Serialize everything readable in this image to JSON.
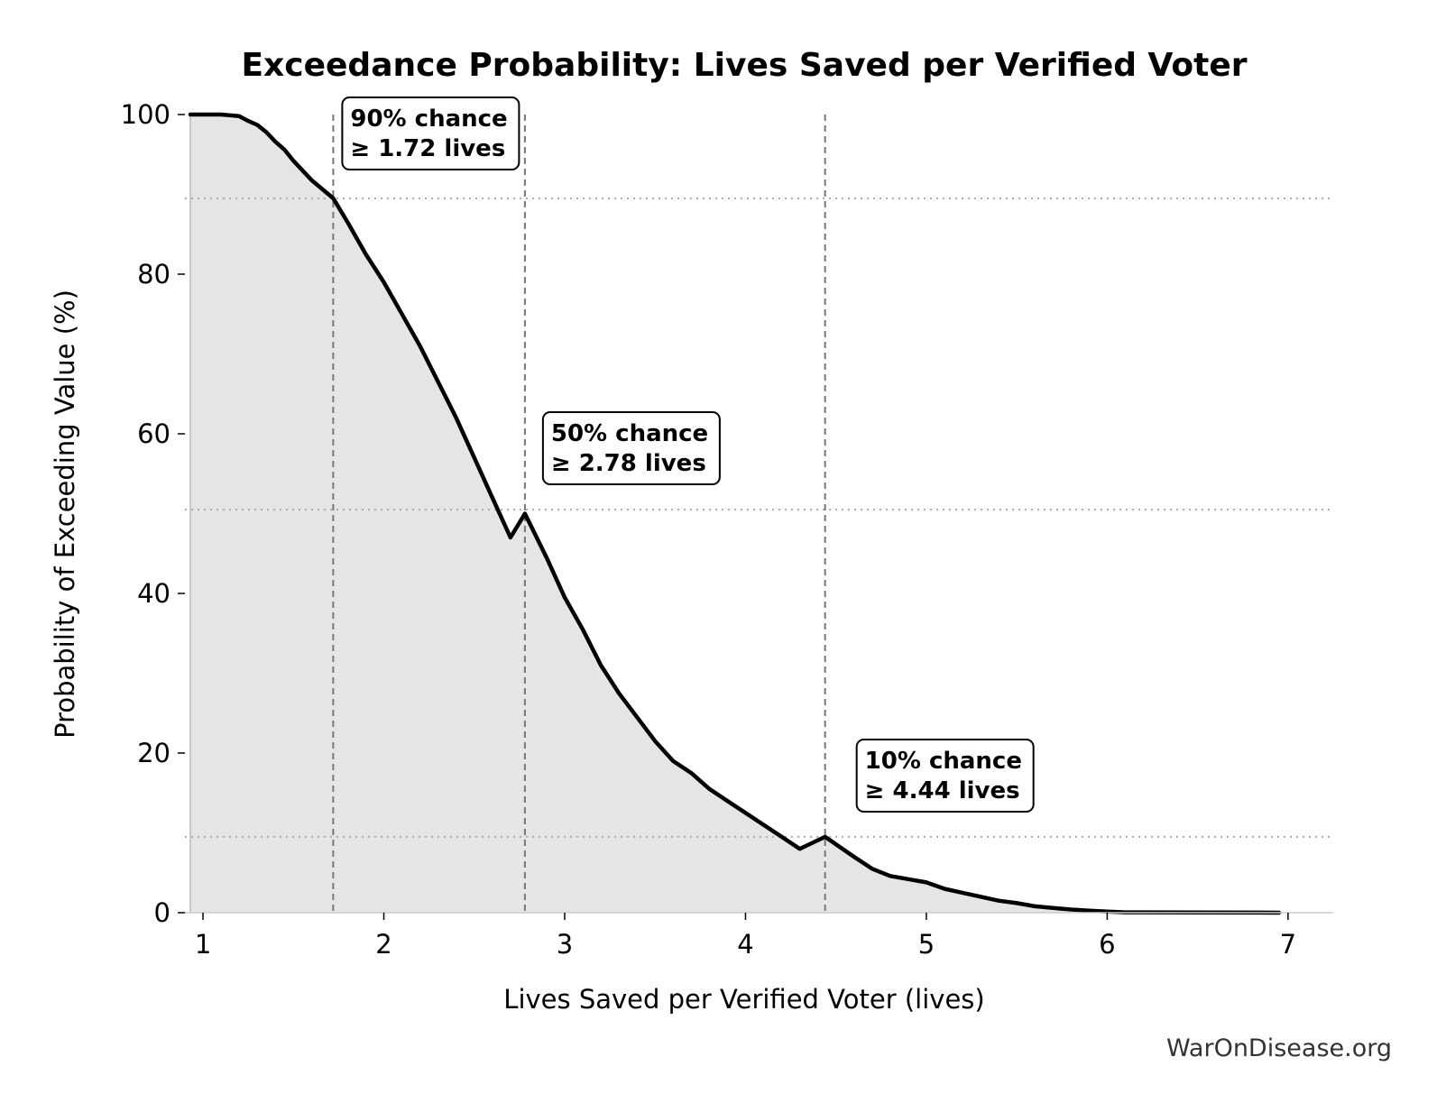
{
  "chart_data": {
    "type": "area",
    "title": "Exceedance Probability: Lives Saved per Verified Voter",
    "xlabel": "Lives Saved per Verified Voter (lives)",
    "ylabel": "Probability of Exceeding Value (%)",
    "xlim": [
      0.9,
      7.25
    ],
    "ylim": [
      0,
      100
    ],
    "x_ticks": [
      "1",
      "2",
      "3",
      "4",
      "5",
      "6",
      "7"
    ],
    "y_ticks": [
      "0",
      "20",
      "40",
      "60",
      "80",
      "100"
    ],
    "grid": false,
    "x": [
      0.93,
      1.0,
      1.1,
      1.2,
      1.25,
      1.3,
      1.35,
      1.4,
      1.45,
      1.5,
      1.6,
      1.72,
      1.8,
      1.9,
      2.0,
      2.1,
      2.2,
      2.3,
      2.4,
      2.5,
      2.6,
      2.7,
      2.78,
      2.9,
      3.0,
      3.1,
      3.2,
      3.3,
      3.4,
      3.5,
      3.6,
      3.7,
      3.8,
      3.9,
      4.0,
      4.1,
      4.2,
      4.3,
      4.44,
      4.6,
      4.7,
      4.8,
      4.9,
      5.0,
      5.1,
      5.2,
      5.3,
      5.4,
      5.5,
      5.6,
      5.7,
      5.8,
      5.9,
      6.0,
      6.1,
      6.2,
      6.5,
      6.95
    ],
    "y": [
      100,
      100,
      100,
      99.8,
      99.2,
      98.7,
      97.8,
      96.6,
      95.6,
      94.2,
      91.8,
      89.5,
      86.5,
      82.5,
      79.0,
      75.0,
      71.0,
      66.5,
      62.0,
      57.0,
      52.0,
      47.0,
      50.0,
      44.5,
      39.5,
      35.5,
      31.0,
      27.5,
      24.5,
      21.5,
      19.0,
      17.5,
      15.5,
      14.0,
      12.5,
      11.0,
      9.5,
      8.0,
      9.5,
      7.0,
      5.5,
      4.6,
      4.2,
      3.8,
      3.0,
      2.5,
      2.0,
      1.5,
      1.2,
      0.8,
      0.6,
      0.4,
      0.25,
      0.15,
      0.05,
      0.05,
      0.03,
      0.0
    ],
    "markers": [
      {
        "x": 1.72,
        "y": 89.5,
        "label_line1": "90% chance",
        "label_line2": "≥ 1.72 lives"
      },
      {
        "x": 2.78,
        "y": 50.5,
        "label_line1": "50% chance",
        "label_line2": "≥ 2.78 lives"
      },
      {
        "x": 4.44,
        "y": 9.5,
        "label_line1": "10% chance",
        "label_line2": "≥ 4.44 lives"
      }
    ],
    "colors": {
      "curve": "#000000",
      "fill": "#e5e5e5",
      "reference_line": "#777777",
      "horizontal_reference": "#aaaaaa"
    }
  },
  "watermark": "WarOnDisease.org"
}
